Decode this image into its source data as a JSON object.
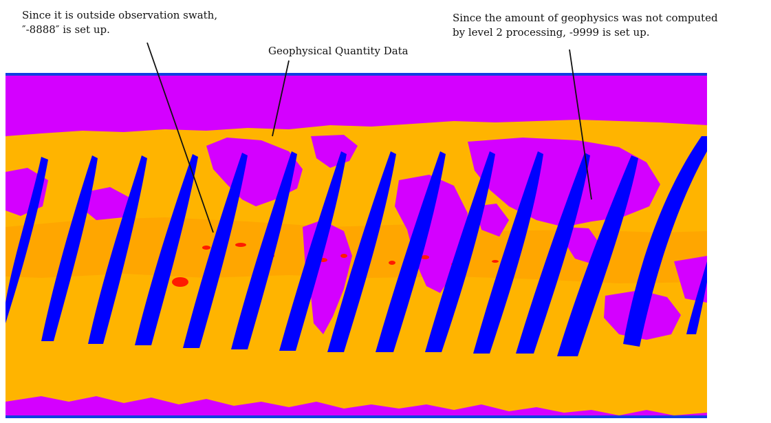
{
  "annotations": {
    "swath": {
      "line1": "Since it is outside observation swath,",
      "line2": "″-8888″ is set up."
    },
    "geo": {
      "text": "Geophysical Quantity Data"
    },
    "level2": {
      "line1": "Since the amount of geophysics was not computed",
      "line2": "by level 2 processing, -9999 is set up."
    }
  },
  "colors": {
    "no_value": "#d400ff",
    "data": "#ffb400",
    "data_dark": "#ff9a00",
    "high": "#ff1a00",
    "swath_gap": "#0000ff",
    "edge": "#1040e0"
  },
  "legend_values": {
    "outside_swath": -8888,
    "not_computed": -9999
  }
}
